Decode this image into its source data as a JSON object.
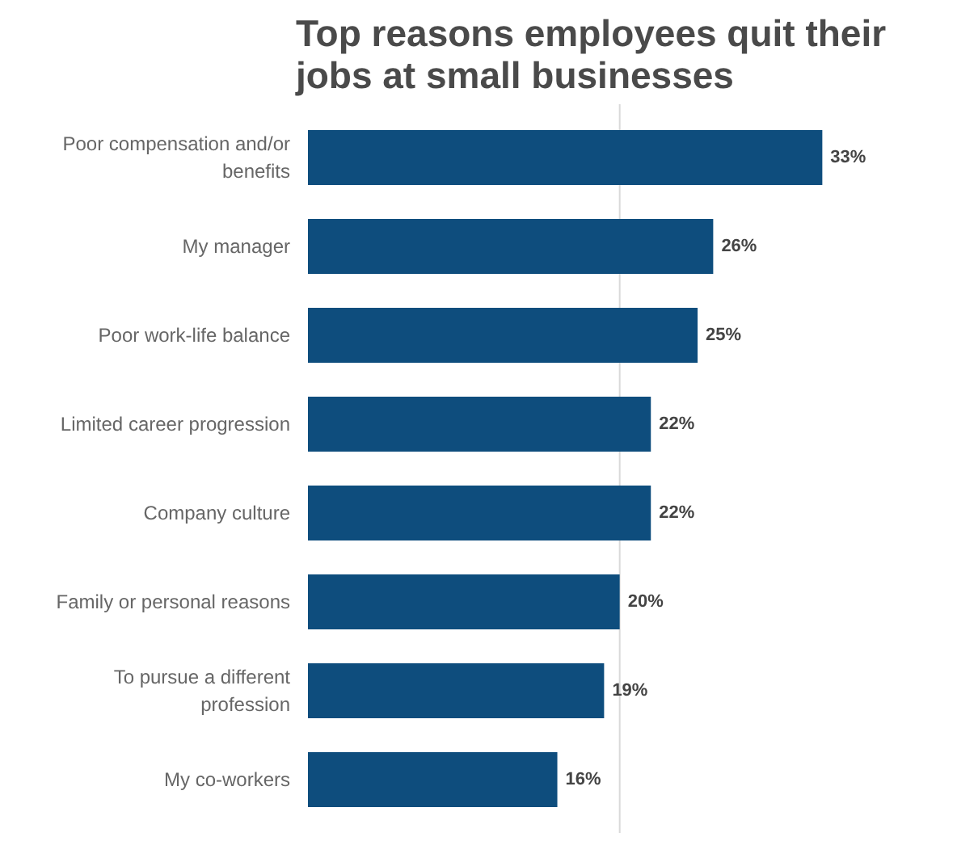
{
  "chart_data": {
    "type": "bar",
    "orientation": "horizontal",
    "title": "Top reasons employees quit their jobs at small businesses",
    "categories": [
      "Poor compensation and/or benefits",
      "My manager",
      "Poor work-life balance",
      "Limited career progression",
      "Company culture",
      "Family or personal reasons",
      "To pursue a different profession",
      "My co-workers"
    ],
    "values": [
      33,
      26,
      25,
      22,
      22,
      20,
      19,
      16
    ],
    "value_labels": [
      "33%",
      "26%",
      "25%",
      "22%",
      "22%",
      "20%",
      "19%",
      "16%"
    ],
    "color": "#0e4d7d",
    "ref_lines": [
      {
        "axis": "x",
        "value": 20,
        "label": null,
        "color": "#d9d9d9"
      }
    ],
    "tick_labels": "y"
  }
}
